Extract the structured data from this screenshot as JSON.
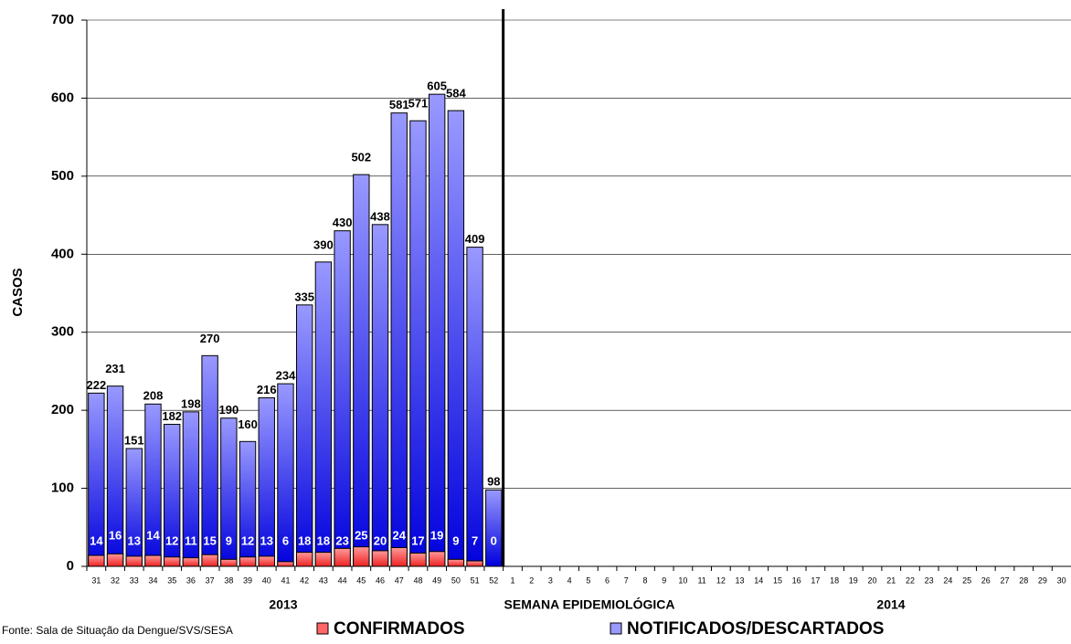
{
  "chart_data": {
    "type": "bar",
    "y_label": "CASOS",
    "x_label": "SEMANA EPIDEMIOLÓGICA",
    "annotations": [
      "2013",
      "2014"
    ],
    "source": "Fonte: Sala de Situação da Dengue/SVS/SESA",
    "categories": [
      "31",
      "32",
      "33",
      "34",
      "35",
      "36",
      "37",
      "38",
      "39",
      "40",
      "41",
      "42",
      "43",
      "44",
      "45",
      "46",
      "47",
      "48",
      "49",
      "50",
      "51",
      "52",
      "1",
      "2",
      "3",
      "4",
      "5",
      "6",
      "7",
      "8",
      "9",
      "10",
      "11",
      "12",
      "13",
      "14",
      "15",
      "16",
      "17",
      "18",
      "19",
      "20",
      "21",
      "22",
      "23",
      "24",
      "25",
      "26",
      "27",
      "28",
      "29",
      "30"
    ],
    "series": [
      {
        "name": "CONFIRMADOS",
        "color": "#ff6666",
        "values": [
          14,
          16,
          13,
          14,
          12,
          11,
          15,
          9,
          12,
          13,
          6,
          18,
          18,
          23,
          25,
          20,
          24,
          17,
          19,
          9,
          7,
          0,
          null,
          null,
          null,
          null,
          null,
          null,
          null,
          null,
          null,
          null,
          null,
          null,
          null,
          null,
          null,
          null,
          null,
          null,
          null,
          null,
          null,
          null,
          null,
          null,
          null,
          null,
          null,
          null,
          null,
          null
        ]
      },
      {
        "name": "NOTIFICADOS/DESCARTADOS",
        "color": "#9999ff",
        "values": [
          222,
          231,
          151,
          208,
          182,
          198,
          270,
          190,
          160,
          216,
          234,
          335,
          390,
          430,
          502,
          438,
          581,
          571,
          605,
          584,
          409,
          98,
          null,
          null,
          null,
          null,
          null,
          null,
          null,
          null,
          null,
          null,
          null,
          null,
          null,
          null,
          null,
          null,
          null,
          null,
          null,
          null,
          null,
          null,
          null,
          null,
          null,
          null,
          null,
          null,
          null,
          null
        ]
      }
    ],
    "ylim": [
      0,
      700
    ],
    "yticks": [
      0,
      100,
      200,
      300,
      400,
      500,
      600,
      700
    ],
    "grid": true
  }
}
